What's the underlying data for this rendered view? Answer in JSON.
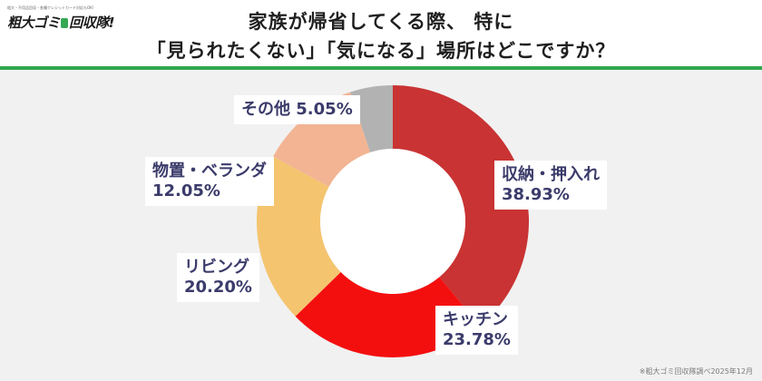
{
  "brand": {
    "tagline": "粗大・不用品回収・各種クレジットカード対応もOK!",
    "name_part1": "粗大ゴミ",
    "name_part2": "回収隊!"
  },
  "header": {
    "title_line1": "家族が帰省してくる際、 特に",
    "title_line2": "「見られたくない」「気になる」場所はどこですか？"
  },
  "colors": {
    "accent_rule": "#2fa84f",
    "chart_background": "#f1f1f1"
  },
  "chart_data": {
    "type": "pie",
    "style": "donut",
    "start_angle": "12 o'clock",
    "direction": "clockwise",
    "slices": [
      {
        "label": "収納・押入れ",
        "value": 38.93,
        "value_text": "38.93%",
        "color": "#c93333"
      },
      {
        "label": "キッチン",
        "value": 23.78,
        "value_text": "23.78%",
        "color": "#f40f0f"
      },
      {
        "label": "リビング",
        "value": 20.2,
        "value_text": "20.20%",
        "color": "#f4c46f"
      },
      {
        "label": "物置・ベランダ",
        "value": 12.05,
        "value_text": "12.05%",
        "color": "#f2b493"
      },
      {
        "label": "その他",
        "value": 5.05,
        "value_text": "5.05%",
        "color": "#b2b2b2"
      }
    ]
  },
  "footer": {
    "source": "※粗大ゴミ回収隊調べ2025年12月"
  }
}
